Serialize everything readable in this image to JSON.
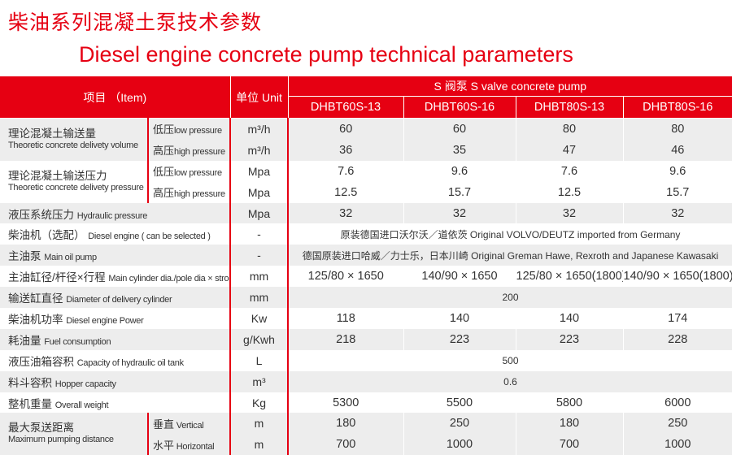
{
  "title_cn": "柴油系列混凝土泵技术参数",
  "title_en": "Diesel engine concrete pump technical parameters",
  "header": {
    "item": "项目 （Item)",
    "unit": "单位 Unit",
    "group": "S 阀泵  S valve concrete pump",
    "models": [
      "DHBT60S-13",
      "DHBT60S-16",
      "DHBT80S-13",
      "DHBT80S-16"
    ]
  },
  "colors": {
    "accent": "#e60012",
    "stripe": "#ededed"
  },
  "rows": [
    {
      "cn": "理论混凝土输送量",
      "en": "Theoretic concrete delivety volume",
      "sub_cn": "低压",
      "sub_en": "low pressure",
      "unit": "m³/h",
      "values": [
        "60",
        "60",
        "80",
        "80"
      ]
    },
    {
      "sub_cn": "高压",
      "sub_en": "high pressure",
      "unit": "m³/h",
      "values": [
        "36",
        "35",
        "47",
        "46"
      ]
    },
    {
      "cn": "理论混凝土输送压力",
      "en": "Theoretic concrete delivety pressure",
      "sub_cn": "低压",
      "sub_en": "low pressure",
      "unit": "Mpa",
      "values": [
        "7.6",
        "9.6",
        "7.6",
        "9.6"
      ]
    },
    {
      "sub_cn": "高压",
      "sub_en": "high pressure",
      "unit": "Mpa",
      "values": [
        "12.5",
        "15.7",
        "12.5",
        "15.7"
      ]
    },
    {
      "cn": "液压系统压力",
      "en": "Hydraulic pressure",
      "unit": "Mpa",
      "values": [
        "32",
        "32",
        "32",
        "32"
      ]
    },
    {
      "cn": "柴油机（选配）",
      "en": "Diesel engine ( can be selected )",
      "unit": "-",
      "span": "原装德国进口沃尔沃／道依茨  Original VOLVO/DEUTZ imported from Germany"
    },
    {
      "cn": "主油泵",
      "en": "Main oil pump",
      "unit": "-",
      "span": "德国原装进口哈威／力士乐，日本川崎  Original  Greman Hawe, Rexroth and Japanese Kawasaki"
    },
    {
      "cn": "主油缸径/杆径×行程",
      "en": "Main cylinder dia./pole dia × stroke",
      "unit": "mm",
      "values": [
        "125/80 × 1650",
        "140/90 × 1650",
        "125/80 × 1650(1800)",
        "140/90 × 1650(1800)"
      ]
    },
    {
      "cn": "输送缸直径",
      "en": "Diameter of delivery cylinder",
      "unit": "mm",
      "span": "200"
    },
    {
      "cn": "柴油机功率",
      "en": "Diesel engine Power",
      "unit": "Kw",
      "values": [
        "118",
        "140",
        "140",
        "174"
      ]
    },
    {
      "cn": "耗油量",
      "en": "Fuel consumption",
      "unit": "g/Kwh",
      "values": [
        "218",
        "223",
        "223",
        "228"
      ]
    },
    {
      "cn": "液压油箱容积",
      "en": "Capacity of hydraulic oil tank",
      "unit": "L",
      "span": "500"
    },
    {
      "cn": "料斗容积",
      "en": "Hopper capacity",
      "unit": "m³",
      "span": "0.6"
    },
    {
      "cn": "整机重量",
      "en": "Overall weight",
      "unit": "Kg",
      "values": [
        "5300",
        "5500",
        "5800",
        "6000"
      ]
    },
    {
      "cn": "最大泵送距离",
      "en": "Maximum pumping distance",
      "sub_cn": "垂直",
      "sub_en": " Vertical",
      "unit": "m",
      "values": [
        "180",
        "250",
        "180",
        "250"
      ]
    },
    {
      "sub_cn": "水平",
      "sub_en": " Horizontal",
      "unit": "m",
      "values": [
        "700",
        "1000",
        "700",
        "1000"
      ]
    }
  ]
}
